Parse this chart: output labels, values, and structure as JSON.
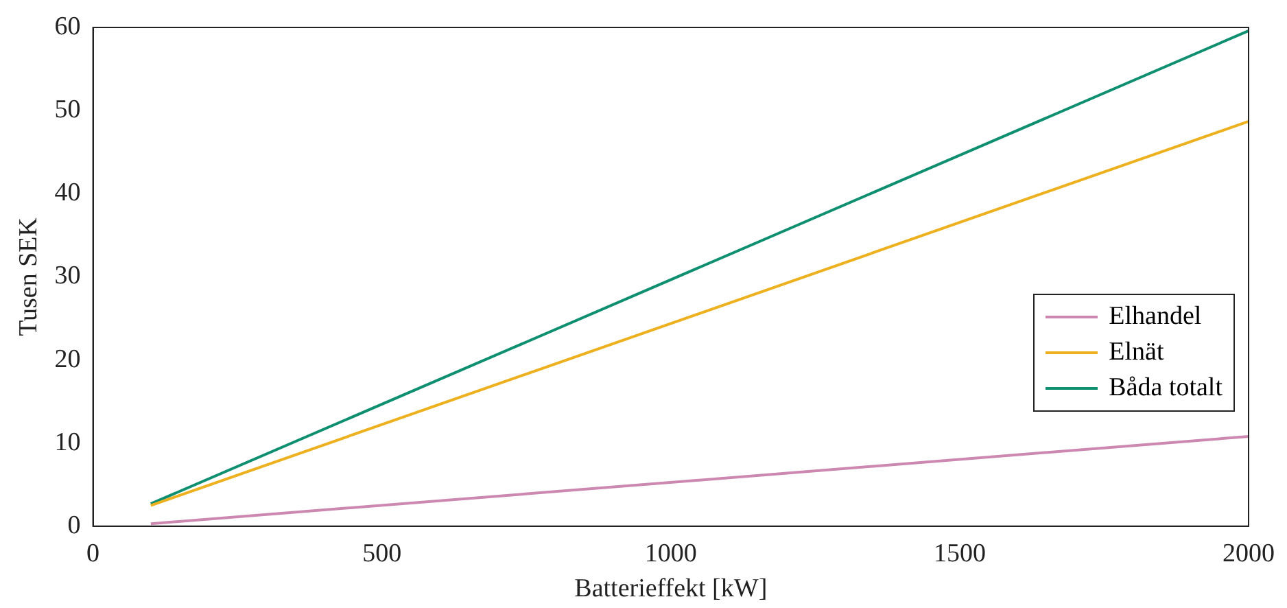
{
  "chart_data": {
    "type": "line",
    "xlabel": "Batterieffekt [kW]",
    "ylabel": "Tusen SEK",
    "xlim": [
      0,
      2000
    ],
    "xticks": [
      0,
      500,
      1000,
      1500,
      2000
    ],
    "ylim": [
      0,
      60
    ],
    "yticks": [
      0,
      10,
      20,
      30,
      40,
      50,
      60
    ],
    "grid": false,
    "legend": "right",
    "marker": "none",
    "line_style": "solid",
    "x": [
      100,
      2000
    ],
    "series": [
      {
        "name": "Elhandel",
        "color": "#cc88b0",
        "values": [
          0.3,
          10.8
        ]
      },
      {
        "name": "Elnät",
        "color": "#edb120",
        "values": [
          2.5,
          48.7
        ]
      },
      {
        "name": "Båda totalt",
        "color": "#0e8f70",
        "values": [
          2.7,
          59.6
        ]
      }
    ]
  }
}
